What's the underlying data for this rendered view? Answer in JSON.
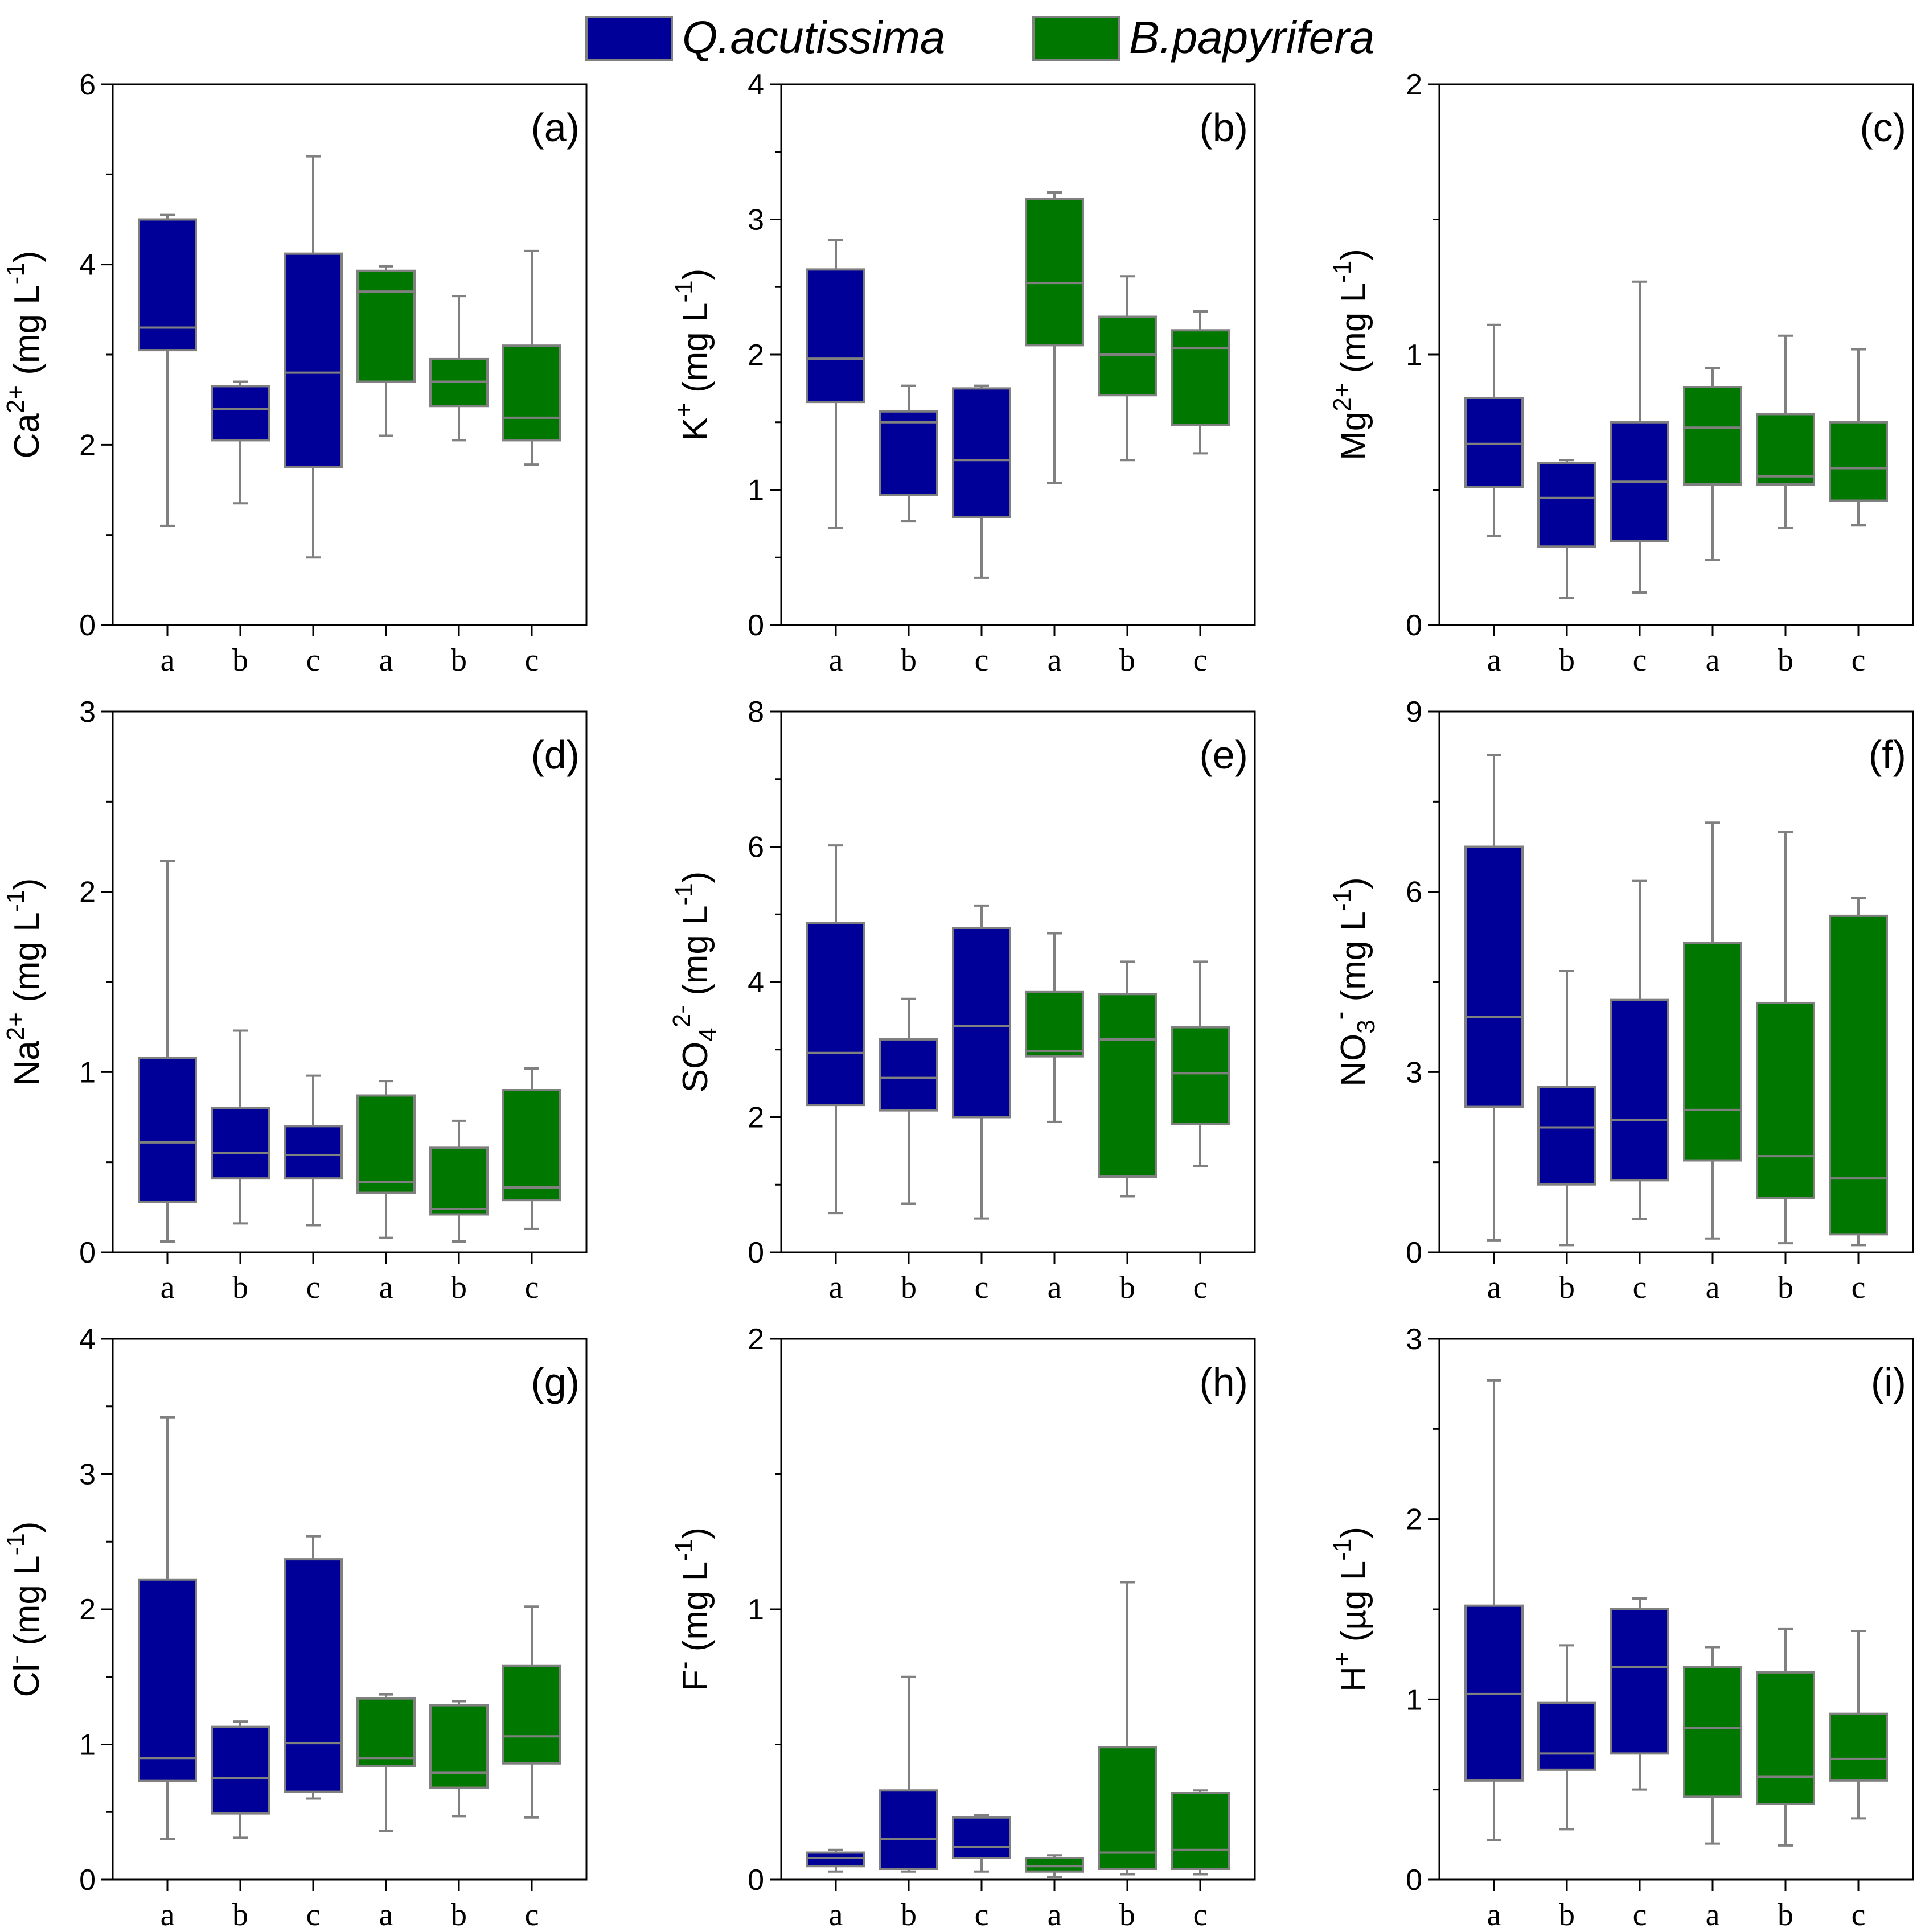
{
  "legend": {
    "items": [
      {
        "label": "Q.acutissima",
        "color": "#000099"
      },
      {
        "label": "B.papyrifera",
        "color": "#007800"
      }
    ]
  },
  "colors": {
    "q": "#000099",
    "b": "#007800",
    "stroke": "#808080",
    "axis": "#000000"
  },
  "chart_data": [
    {
      "type": "box",
      "panel": "(a)",
      "ylabel": {
        "base": "Ca",
        "sup": "2+",
        "units": " (mg L",
        "unit_sup": "-1",
        "close": ")"
      },
      "ylim": [
        0,
        6
      ],
      "yticks": [
        "0",
        "2",
        "4",
        "6"
      ],
      "ytick_values": [
        0,
        2,
        4,
        6
      ],
      "categories": [
        "a",
        "b",
        "c",
        "a",
        "b",
        "c"
      ],
      "groups": [
        "Q.acutissima",
        "Q.acutissima",
        "Q.acutissima",
        "B.papyrifera",
        "B.papyrifera",
        "B.papyrifera"
      ],
      "boxes": [
        {
          "min": 1.1,
          "q1": 3.05,
          "median": 3.3,
          "q3": 4.5,
          "max": 4.55
        },
        {
          "min": 1.35,
          "q1": 2.05,
          "median": 2.4,
          "q3": 2.65,
          "max": 2.7
        },
        {
          "min": 0.75,
          "q1": 1.75,
          "median": 2.8,
          "q3": 4.12,
          "max": 5.2
        },
        {
          "min": 2.1,
          "q1": 2.7,
          "median": 3.7,
          "q3": 3.93,
          "max": 3.98
        },
        {
          "min": 2.05,
          "q1": 2.43,
          "median": 2.7,
          "q3": 2.95,
          "max": 3.65
        },
        {
          "min": 1.78,
          "q1": 2.05,
          "median": 2.3,
          "q3": 3.1,
          "max": 4.15
        }
      ]
    },
    {
      "type": "box",
      "panel": "(b)",
      "ylabel": {
        "base": "K",
        "sup": "+",
        "units": " (mg L",
        "unit_sup": "-1",
        "close": ")"
      },
      "ylim": [
        0,
        4
      ],
      "yticks": [
        "0",
        "1",
        "2",
        "3",
        "4"
      ],
      "ytick_values": [
        0,
        1,
        2,
        3,
        4
      ],
      "categories": [
        "a",
        "b",
        "c",
        "a",
        "b",
        "c"
      ],
      "groups": [
        "Q.acutissima",
        "Q.acutissima",
        "Q.acutissima",
        "B.papyrifera",
        "B.papyrifera",
        "B.papyrifera"
      ],
      "boxes": [
        {
          "min": 0.72,
          "q1": 1.65,
          "median": 1.97,
          "q3": 2.63,
          "max": 2.85
        },
        {
          "min": 0.77,
          "q1": 0.96,
          "median": 1.5,
          "q3": 1.58,
          "max": 1.77
        },
        {
          "min": 0.35,
          "q1": 0.8,
          "median": 1.22,
          "q3": 1.75,
          "max": 1.77
        },
        {
          "min": 1.05,
          "q1": 2.07,
          "median": 2.53,
          "q3": 3.15,
          "max": 3.2
        },
        {
          "min": 1.22,
          "q1": 1.7,
          "median": 2.0,
          "q3": 2.28,
          "max": 2.58
        },
        {
          "min": 1.27,
          "q1": 1.48,
          "median": 2.05,
          "q3": 2.18,
          "max": 2.32
        }
      ]
    },
    {
      "type": "box",
      "panel": "(c)",
      "ylabel": {
        "base": "Mg",
        "sup": "2+",
        "units": " (mg L",
        "unit_sup": "-1",
        "close": ")"
      },
      "ylim": [
        0,
        2
      ],
      "yticks": [
        "0",
        "1",
        "2"
      ],
      "ytick_values": [
        0,
        1,
        2
      ],
      "categories": [
        "a",
        "b",
        "c",
        "a",
        "b",
        "c"
      ],
      "groups": [
        "Q.acutissima",
        "Q.acutissima",
        "Q.acutissima",
        "B.papyrifera",
        "B.papyrifera",
        "B.papyrifera"
      ],
      "boxes": [
        {
          "min": 0.33,
          "q1": 0.51,
          "median": 0.67,
          "q3": 0.84,
          "max": 1.11
        },
        {
          "min": 0.1,
          "q1": 0.29,
          "median": 0.47,
          "q3": 0.6,
          "max": 0.61
        },
        {
          "min": 0.12,
          "q1": 0.31,
          "median": 0.53,
          "q3": 0.75,
          "max": 1.27
        },
        {
          "min": 0.24,
          "q1": 0.52,
          "median": 0.73,
          "q3": 0.88,
          "max": 0.95
        },
        {
          "min": 0.36,
          "q1": 0.52,
          "median": 0.55,
          "q3": 0.78,
          "max": 1.07
        },
        {
          "min": 0.37,
          "q1": 0.46,
          "median": 0.58,
          "q3": 0.75,
          "max": 1.02
        }
      ]
    },
    {
      "type": "box",
      "panel": "(d)",
      "ylabel": {
        "base": "Na",
        "sup": "2+",
        "units": " (mg L",
        "unit_sup": "-1",
        "close": ")"
      },
      "ylim": [
        0,
        3
      ],
      "yticks": [
        "0",
        "1",
        "2",
        "3"
      ],
      "ytick_values": [
        0,
        1,
        2,
        3
      ],
      "categories": [
        "a",
        "b",
        "c",
        "a",
        "b",
        "c"
      ],
      "groups": [
        "Q.acutissima",
        "Q.acutissima",
        "Q.acutissima",
        "B.papyrifera",
        "B.papyrifera",
        "B.papyrifera"
      ],
      "boxes": [
        {
          "min": 0.06,
          "q1": 0.28,
          "median": 0.61,
          "q3": 1.08,
          "max": 2.17
        },
        {
          "min": 0.16,
          "q1": 0.41,
          "median": 0.55,
          "q3": 0.8,
          "max": 1.23
        },
        {
          "min": 0.15,
          "q1": 0.41,
          "median": 0.54,
          "q3": 0.7,
          "max": 0.98
        },
        {
          "min": 0.08,
          "q1": 0.33,
          "median": 0.39,
          "q3": 0.87,
          "max": 0.95
        },
        {
          "min": 0.06,
          "q1": 0.21,
          "median": 0.24,
          "q3": 0.58,
          "max": 0.73
        },
        {
          "min": 0.13,
          "q1": 0.29,
          "median": 0.36,
          "q3": 0.9,
          "max": 1.02
        }
      ]
    },
    {
      "type": "box",
      "panel": "(e)",
      "ylabel": {
        "base": "SO",
        "sub": "4",
        "sup": "2-",
        "units": " (mg L",
        "unit_sup": "-1",
        "close": ")"
      },
      "ylim": [
        0,
        8
      ],
      "yticks": [
        "0",
        "2",
        "4",
        "6",
        "8"
      ],
      "ytick_values": [
        0,
        2,
        4,
        6,
        8
      ],
      "categories": [
        "a",
        "b",
        "c",
        "a",
        "b",
        "c"
      ],
      "groups": [
        "Q.acutissima",
        "Q.acutissima",
        "Q.acutissima",
        "B.papyrifera",
        "B.papyrifera",
        "B.papyrifera"
      ],
      "boxes": [
        {
          "min": 0.58,
          "q1": 2.18,
          "median": 2.95,
          "q3": 4.87,
          "max": 6.02
        },
        {
          "min": 0.72,
          "q1": 2.1,
          "median": 2.58,
          "q3": 3.15,
          "max": 3.75
        },
        {
          "min": 0.5,
          "q1": 2.0,
          "median": 3.35,
          "q3": 4.8,
          "max": 5.13
        },
        {
          "min": 1.93,
          "q1": 2.9,
          "median": 2.98,
          "q3": 3.85,
          "max": 4.72
        },
        {
          "min": 0.83,
          "q1": 1.12,
          "median": 3.15,
          "q3": 3.82,
          "max": 4.3
        },
        {
          "min": 1.28,
          "q1": 1.9,
          "median": 2.65,
          "q3": 3.33,
          "max": 4.3
        }
      ]
    },
    {
      "type": "box",
      "panel": "(f)",
      "ylabel": {
        "base": "NO",
        "sub": "3",
        "sup": "-",
        "units": " (mg L",
        "unit_sup": "-1",
        "close": ")"
      },
      "ylim": [
        0,
        9
      ],
      "yticks": [
        "0",
        "3",
        "6",
        "9"
      ],
      "ytick_values": [
        0,
        3,
        6,
        9
      ],
      "categories": [
        "a",
        "b",
        "c",
        "a",
        "b",
        "c"
      ],
      "groups": [
        "Q.acutissima",
        "Q.acutissima",
        "Q.acutissima",
        "B.papyrifera",
        "B.papyrifera",
        "B.papyrifera"
      ],
      "boxes": [
        {
          "min": 0.2,
          "q1": 2.42,
          "median": 3.92,
          "q3": 6.75,
          "max": 8.28
        },
        {
          "min": 0.12,
          "q1": 1.13,
          "median": 2.08,
          "q3": 2.75,
          "max": 4.68
        },
        {
          "min": 0.55,
          "q1": 1.2,
          "median": 2.2,
          "q3": 4.2,
          "max": 6.18
        },
        {
          "min": 0.23,
          "q1": 1.53,
          "median": 2.37,
          "q3": 5.15,
          "max": 7.15
        },
        {
          "min": 0.15,
          "q1": 0.9,
          "median": 1.6,
          "q3": 4.15,
          "max": 7.0
        },
        {
          "min": 0.12,
          "q1": 0.3,
          "median": 1.23,
          "q3": 5.6,
          "max": 5.9
        }
      ]
    },
    {
      "type": "box",
      "panel": "(g)",
      "ylabel": {
        "base": "Cl",
        "sup": "-",
        "units": " (mg L",
        "unit_sup": "-1",
        "close": ")"
      },
      "ylim": [
        0,
        4
      ],
      "yticks": [
        "0",
        "1",
        "2",
        "3",
        "4"
      ],
      "ytick_values": [
        0,
        1,
        2,
        3,
        4
      ],
      "categories": [
        "a",
        "b",
        "c",
        "a",
        "b",
        "c"
      ],
      "groups": [
        "Q.acutissima",
        "Q.acutissima",
        "Q.acutissima",
        "B.papyrifera",
        "B.papyrifera",
        "B.papyrifera"
      ],
      "boxes": [
        {
          "min": 0.3,
          "q1": 0.73,
          "median": 0.9,
          "q3": 2.22,
          "max": 3.42
        },
        {
          "min": 0.31,
          "q1": 0.49,
          "median": 0.75,
          "q3": 1.13,
          "max": 1.17
        },
        {
          "min": 0.6,
          "q1": 0.65,
          "median": 1.01,
          "q3": 2.37,
          "max": 2.54
        },
        {
          "min": 0.36,
          "q1": 0.84,
          "median": 0.9,
          "q3": 1.34,
          "max": 1.37
        },
        {
          "min": 0.47,
          "q1": 0.68,
          "median": 0.79,
          "q3": 1.29,
          "max": 1.32
        },
        {
          "min": 0.46,
          "q1": 0.86,
          "median": 1.06,
          "q3": 1.58,
          "max": 2.02
        }
      ]
    },
    {
      "type": "box",
      "panel": "(h)",
      "ylabel": {
        "base": "F",
        "sup": "-",
        "units": " (mg L",
        "unit_sup": "-1",
        "close": ")"
      },
      "ylim": [
        0,
        2
      ],
      "yticks": [
        "0",
        "1",
        "2"
      ],
      "ytick_values": [
        0,
        1,
        2
      ],
      "categories": [
        "a",
        "b",
        "c",
        "a",
        "b",
        "c"
      ],
      "groups": [
        "Q.acutissima",
        "Q.acutissima",
        "Q.acutissima",
        "B.papyrifera",
        "B.papyrifera",
        "B.papyrifera"
      ],
      "boxes": [
        {
          "min": 0.03,
          "q1": 0.05,
          "median": 0.08,
          "q3": 0.1,
          "max": 0.11
        },
        {
          "min": 0.03,
          "q1": 0.04,
          "median": 0.15,
          "q3": 0.33,
          "max": 0.75
        },
        {
          "min": 0.03,
          "q1": 0.08,
          "median": 0.12,
          "q3": 0.23,
          "max": 0.24
        },
        {
          "min": 0.01,
          "q1": 0.03,
          "median": 0.05,
          "q3": 0.08,
          "max": 0.09
        },
        {
          "min": 0.02,
          "q1": 0.04,
          "median": 0.1,
          "q3": 0.49,
          "max": 1.1
        },
        {
          "min": 0.02,
          "q1": 0.04,
          "median": 0.11,
          "q3": 0.32,
          "max": 0.33
        }
      ]
    },
    {
      "type": "box",
      "panel": "(i)",
      "ylabel": {
        "base": "H",
        "sup": "+",
        "units": " (µg L",
        "unit_sup": "-1",
        "close": ")"
      },
      "ylim": [
        0,
        3
      ],
      "yticks": [
        "0",
        "1",
        "2",
        "3"
      ],
      "ytick_values": [
        0,
        1,
        2,
        3
      ],
      "categories": [
        "a",
        "b",
        "c",
        "a",
        "b",
        "c"
      ],
      "groups": [
        "Q.acutissima",
        "Q.acutissima",
        "Q.acutissima",
        "B.papyrifera",
        "B.papyrifera",
        "B.papyrifera"
      ],
      "boxes": [
        {
          "min": 0.22,
          "q1": 0.55,
          "median": 1.03,
          "q3": 1.52,
          "max": 2.77
        },
        {
          "min": 0.28,
          "q1": 0.61,
          "median": 0.7,
          "q3": 0.98,
          "max": 1.3
        },
        {
          "min": 0.5,
          "q1": 0.7,
          "median": 1.18,
          "q3": 1.5,
          "max": 1.56
        },
        {
          "min": 0.2,
          "q1": 0.46,
          "median": 0.84,
          "q3": 1.18,
          "max": 1.29
        },
        {
          "min": 0.19,
          "q1": 0.42,
          "median": 0.57,
          "q3": 1.15,
          "max": 1.39
        },
        {
          "min": 0.34,
          "q1": 0.55,
          "median": 0.67,
          "q3": 0.92,
          "max": 1.38
        }
      ]
    }
  ]
}
